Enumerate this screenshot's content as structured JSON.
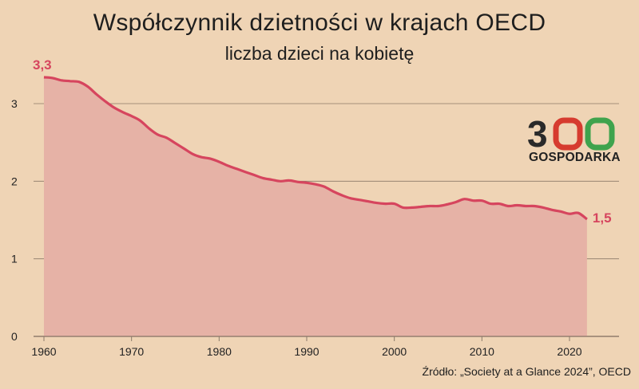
{
  "header": {
    "title": "Współczynnik dzietności w krajach OECD",
    "subtitle": "liczba dzieci na kobietę"
  },
  "source": "Źródło: „Society at a Glance 2024”, OECD",
  "logo": {
    "number_text": "300",
    "label": "GOSPODARKA",
    "colors": {
      "three": "#2a2a2a",
      "first_zero": "#d63b2f",
      "second_zero": "#3fa34d"
    }
  },
  "colors": {
    "line": "#d6455e",
    "area": "#e6b2a6",
    "annotation": "#d6455e",
    "grid": "#8c7a6a",
    "background": "#efd4b5"
  },
  "chart_data": {
    "type": "area",
    "title": "Współczynnik dzietności w krajach OECD",
    "subtitle": "liczba dzieci na kobietę",
    "xlabel": "",
    "ylabel": "",
    "xlim": [
      1960,
      2025
    ],
    "ylim": [
      0,
      3.3
    ],
    "x_ticks": [
      "1960",
      "1970",
      "1980",
      "1990",
      "2000",
      "2010",
      "2020"
    ],
    "y_ticks": [
      "0",
      "1",
      "2",
      "3"
    ],
    "grid": "horizontal",
    "legend": "none",
    "annotations": [
      {
        "text": "3,3",
        "x": 1960,
        "y": 3.34
      },
      {
        "text": "1,5",
        "x": 2022,
        "y": 1.51
      }
    ],
    "series": [
      {
        "x": [
          1960,
          1961,
          1962,
          1963,
          1964,
          1965,
          1966,
          1967,
          1968,
          1969,
          1970,
          1971,
          1972,
          1973,
          1974,
          1975,
          1976,
          1977,
          1978,
          1979,
          1980,
          1981,
          1982,
          1983,
          1984,
          1985,
          1986,
          1987,
          1988,
          1989,
          1990,
          1991,
          1992,
          1993,
          1994,
          1995,
          1996,
          1997,
          1998,
          1999,
          2000,
          2001,
          2002,
          2003,
          2004,
          2005,
          2006,
          2007,
          2008,
          2009,
          2010,
          2011,
          2012,
          2013,
          2014,
          2015,
          2016,
          2017,
          2018,
          2019,
          2020,
          2021,
          2022
        ],
        "values": [
          3.34,
          3.33,
          3.3,
          3.29,
          3.28,
          3.22,
          3.12,
          3.03,
          2.95,
          2.89,
          2.84,
          2.78,
          2.68,
          2.6,
          2.56,
          2.49,
          2.42,
          2.35,
          2.31,
          2.29,
          2.25,
          2.2,
          2.16,
          2.12,
          2.08,
          2.04,
          2.02,
          2.0,
          2.01,
          1.99,
          1.98,
          1.96,
          1.93,
          1.87,
          1.82,
          1.78,
          1.76,
          1.74,
          1.72,
          1.71,
          1.71,
          1.66,
          1.66,
          1.67,
          1.68,
          1.68,
          1.7,
          1.73,
          1.77,
          1.75,
          1.75,
          1.71,
          1.71,
          1.68,
          1.69,
          1.68,
          1.68,
          1.66,
          1.63,
          1.61,
          1.58,
          1.59,
          1.51
        ]
      }
    ]
  }
}
